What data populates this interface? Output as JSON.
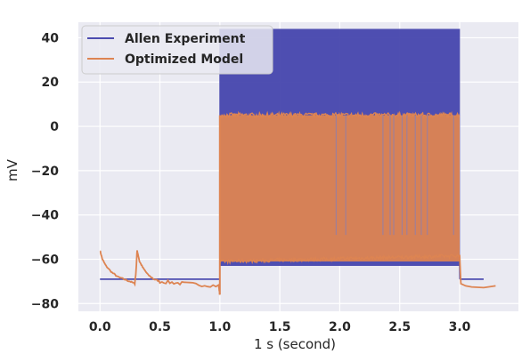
{
  "chart_data": {
    "type": "line",
    "title": "",
    "xlabel": "1 s (second)",
    "ylabel": "mV",
    "xlim": [
      -0.18,
      3.49
    ],
    "ylim": [
      -83.5,
      47.0
    ],
    "xticks": [
      {
        "value": 0.0,
        "label": "0.0"
      },
      {
        "value": 0.5,
        "label": "0.5"
      },
      {
        "value": 1.0,
        "label": "1.0"
      },
      {
        "value": 1.5,
        "label": "1.5"
      },
      {
        "value": 2.0,
        "label": "2.0"
      },
      {
        "value": 2.5,
        "label": "2.5"
      },
      {
        "value": 3.0,
        "label": "3.0"
      }
    ],
    "yticks": [
      {
        "value": 40,
        "label": "40"
      },
      {
        "value": 20,
        "label": "20"
      },
      {
        "value": 0,
        "label": "0"
      },
      {
        "value": -20,
        "label": "−20"
      },
      {
        "value": -40,
        "label": "−40"
      },
      {
        "value": -60,
        "label": "−60"
      },
      {
        "value": -80,
        "label": "−80"
      }
    ],
    "grid": true,
    "legend_position": "top-left",
    "background_color": "#eaeaf2",
    "series": [
      {
        "name": "Allen Experiment",
        "color": "#4c4cb0",
        "resting_mV": -69,
        "spike_peak_mV": 44,
        "spike_trough_mV": -63,
        "stimulus_start_s": 1.0,
        "stimulus_end_s": 3.0,
        "pre_start_s": 0.0,
        "post_end_s": 3.2
      },
      {
        "name": "Optimized Model",
        "color": "#dd8452",
        "spike_peak_mV": 5,
        "spike_trough_mV": -61,
        "stimulus_start_s": 1.0,
        "stimulus_end_s": 3.0,
        "pre_points": [
          [
            0.0,
            -56
          ],
          [
            0.02,
            -60
          ],
          [
            0.05,
            -63
          ],
          [
            0.1,
            -66
          ],
          [
            0.15,
            -68
          ],
          [
            0.2,
            -69
          ],
          [
            0.25,
            -70
          ],
          [
            0.29,
            -71
          ],
          [
            0.3,
            -66
          ],
          [
            0.31,
            -56
          ],
          [
            0.33,
            -61
          ],
          [
            0.36,
            -64
          ],
          [
            0.4,
            -67
          ],
          [
            0.45,
            -69
          ],
          [
            0.5,
            -70
          ],
          [
            0.6,
            -70.5
          ],
          [
            0.7,
            -71
          ],
          [
            0.85,
            -71.5
          ],
          [
            0.99,
            -72
          ],
          [
            1.0,
            -76
          ]
        ],
        "post_points": [
          [
            3.0,
            -58
          ],
          [
            3.01,
            -71
          ],
          [
            3.05,
            -72
          ],
          [
            3.1,
            -72.5
          ],
          [
            3.2,
            -72.8
          ],
          [
            3.3,
            -72
          ]
        ],
        "dropouts_s": [
          1.97,
          2.05,
          2.36,
          2.42,
          2.45,
          2.52,
          2.56,
          2.63,
          2.68,
          2.73,
          2.95
        ]
      }
    ]
  }
}
